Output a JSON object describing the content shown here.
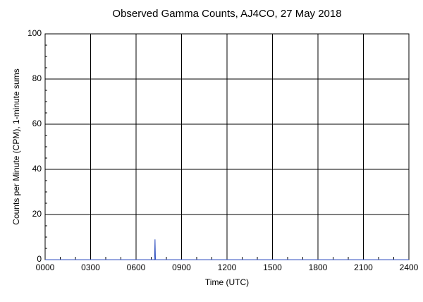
{
  "chart_data": {
    "type": "line",
    "title": "Observed Gamma Counts, AJ4CO, 27 May 2018",
    "xlabel": "Time (UTC)",
    "ylabel": "Counts per Minute (CPM), 1-minute sums",
    "x": [
      0,
      7.22,
      7.25,
      7.28,
      24
    ],
    "series": [
      {
        "color": "#3050c0",
        "values": [
          0,
          0,
          9,
          0,
          0
        ]
      }
    ],
    "xlim": [
      0,
      24
    ],
    "xticks": [
      {
        "value": 0,
        "label": "0000"
      },
      {
        "value": 3,
        "label": "0300"
      },
      {
        "value": 6,
        "label": "0600"
      },
      {
        "value": 9,
        "label": "0900"
      },
      {
        "value": 12,
        "label": "1200"
      },
      {
        "value": 15,
        "label": "1500"
      },
      {
        "value": 18,
        "label": "1800"
      },
      {
        "value": 21,
        "label": "2100"
      },
      {
        "value": 24,
        "label": "2400"
      }
    ],
    "xminorticks": [
      1,
      2,
      4,
      5,
      7,
      8,
      10,
      11,
      13,
      14,
      16,
      17,
      19,
      20,
      22,
      23
    ],
    "ylim": [
      0,
      100
    ],
    "yticks": [
      0,
      20,
      40,
      60,
      80,
      100
    ],
    "yminorticks": [
      5,
      10,
      15,
      25,
      30,
      35,
      45,
      50,
      55,
      65,
      70,
      75,
      85,
      90,
      95
    ],
    "grid": true
  }
}
